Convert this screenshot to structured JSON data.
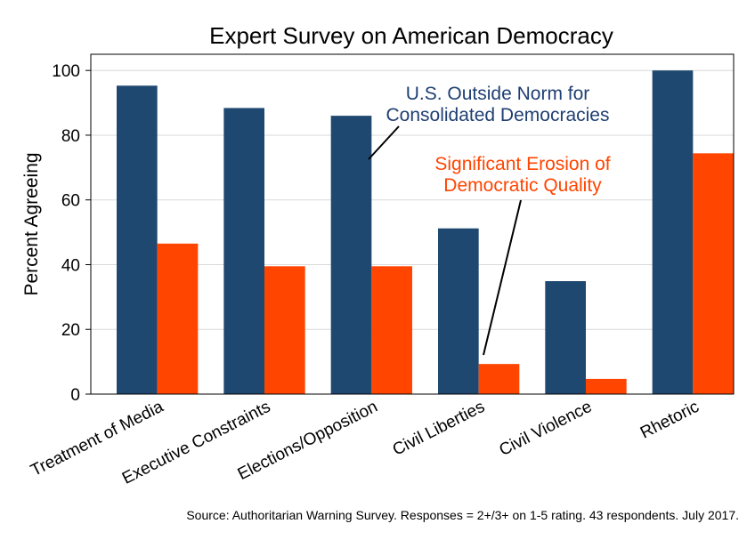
{
  "chart_data": {
    "type": "bar",
    "title": "Expert Survey on American Democracy",
    "xlabel": "",
    "ylabel": "Percent Agreeing",
    "ylim": [
      0,
      105
    ],
    "yticks": [
      0,
      20,
      40,
      60,
      80,
      100
    ],
    "grid": true,
    "categories": [
      "Treatment of Media",
      "Executive Constraints",
      "Elections/Opposition",
      "Civil Liberties",
      "Civil Violence",
      "Rhetoric"
    ],
    "series": [
      {
        "name": "U.S. Outside Norm for Consolidated Democracies",
        "color": "#1f4870",
        "values": [
          95.3,
          88.4,
          86.0,
          51.2,
          34.9,
          100
        ]
      },
      {
        "name": "Significant Erosion of Democratic Quality",
        "color": "#ff4500",
        "values": [
          46.5,
          39.5,
          39.5,
          9.3,
          4.7,
          74.4
        ]
      }
    ],
    "annotations": [
      {
        "series": 0,
        "lines": [
          "U.S. Outside Norm for",
          "Consolidated Democracies"
        ],
        "color": "#1f3f73"
      },
      {
        "series": 1,
        "lines": [
          "Significant Erosion of",
          "Democratic Quality"
        ],
        "color": "#ff4500"
      }
    ],
    "source": "Source: Authoritarian Warning Survey. Responses = 2+/3+ on 1-5 rating. 43 respondents. July 2017."
  }
}
